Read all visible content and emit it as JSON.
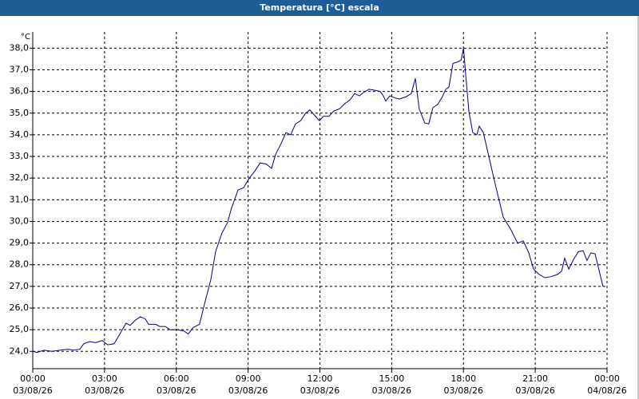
{
  "header": {
    "title": "Temperatura [°C] escala"
  },
  "chart_data": {
    "type": "line",
    "y_unit": "°C",
    "x": [
      0,
      0.17,
      0.47,
      0.8,
      1.13,
      1.47,
      1.7,
      1.97,
      2.13,
      2.37,
      2.63,
      2.9,
      3.13,
      3.4,
      3.64,
      3.9,
      4.07,
      4.3,
      4.5,
      4.7,
      4.84,
      5.14,
      5.3,
      5.54,
      5.74,
      6.04,
      6.3,
      6.5,
      6.7,
      6.97,
      7.18,
      7.44,
      7.64,
      7.9,
      8.14,
      8.3,
      8.58,
      8.81,
      9.05,
      9.3,
      9.5,
      9.75,
      9.98,
      10.15,
      10.38,
      10.58,
      10.78,
      10.98,
      11.2,
      11.4,
      11.58,
      11.78,
      11.98,
      12.15,
      12.38,
      12.58,
      12.82,
      13.05,
      13.25,
      13.45,
      13.65,
      13.82,
      14.05,
      14.32,
      14.52,
      14.65,
      14.75,
      14.92,
      15.15,
      15.32,
      15.59,
      15.82,
      15.99,
      16.15,
      16.38,
      16.55,
      16.72,
      16.92,
      17.09,
      17.26,
      17.39,
      17.56,
      17.73,
      17.9,
      18.0,
      18.1,
      18.23,
      18.39,
      18.56,
      18.66,
      18.83,
      19.06,
      19.33,
      19.66,
      19.99,
      20.26,
      20.5,
      20.73,
      20.93,
      21.16,
      21.4,
      21.66,
      21.93,
      22.1,
      22.23,
      22.4,
      22.6,
      22.8,
      23.0,
      23.16,
      23.33,
      23.5,
      23.83
    ],
    "series": [
      {
        "color": "#00008b",
        "values": [
          24.0,
          23.95,
          24.05,
          24.0,
          24.05,
          24.1,
          24.05,
          24.1,
          24.35,
          24.45,
          24.4,
          24.5,
          24.3,
          24.35,
          24.8,
          25.3,
          25.2,
          25.45,
          25.6,
          25.5,
          25.25,
          25.25,
          25.15,
          25.15,
          25.0,
          25.0,
          24.95,
          24.8,
          25.1,
          25.25,
          26.2,
          27.3,
          28.6,
          29.45,
          29.95,
          30.6,
          31.45,
          31.55,
          32.0,
          32.35,
          32.7,
          32.65,
          32.45,
          33.1,
          33.6,
          34.1,
          34.0,
          34.5,
          34.65,
          35.0,
          35.15,
          34.9,
          34.65,
          34.85,
          34.85,
          35.1,
          35.2,
          35.45,
          35.6,
          35.9,
          35.8,
          35.95,
          36.1,
          36.05,
          36.0,
          35.8,
          35.55,
          35.8,
          35.7,
          35.65,
          35.75,
          35.9,
          36.6,
          35.2,
          34.55,
          34.5,
          35.25,
          35.4,
          35.7,
          36.1,
          36.2,
          37.3,
          37.35,
          37.45,
          38.0,
          36.7,
          35.05,
          34.1,
          34.0,
          34.4,
          34.1,
          33.0,
          31.7,
          30.2,
          29.6,
          29.0,
          29.1,
          28.55,
          27.8,
          27.55,
          27.4,
          27.45,
          27.55,
          27.7,
          28.3,
          27.8,
          28.25,
          28.6,
          28.65,
          28.2,
          28.55,
          28.5,
          27.0
        ]
      }
    ],
    "xlim": [
      0,
      24
    ],
    "xticks": [
      {
        "value": 0,
        "label": "00:00"
      },
      {
        "value": 3,
        "label": "03:00"
      },
      {
        "value": 6,
        "label": "06:00"
      },
      {
        "value": 9,
        "label": "09:00"
      },
      {
        "value": 12,
        "label": "12:00"
      },
      {
        "value": 15,
        "label": "15:00"
      },
      {
        "value": 18,
        "label": "18:00"
      },
      {
        "value": 21,
        "label": "21:00"
      },
      {
        "value": 24,
        "label": "00:00"
      }
    ],
    "xtick_dates": [
      "03/08/26",
      "03/08/26",
      "03/08/26",
      "03/08/26",
      "03/08/26",
      "03/08/26",
      "03/08/26",
      "03/08/26",
      "04/08/26"
    ],
    "ylim": [
      23.2,
      38.75
    ],
    "yticks": [
      {
        "value": 24,
        "label": "24,0"
      },
      {
        "value": 25,
        "label": "25,0"
      },
      {
        "value": 26,
        "label": "26,0"
      },
      {
        "value": 27,
        "label": "27,0"
      },
      {
        "value": 28,
        "label": "28,0"
      },
      {
        "value": 29,
        "label": "29,0"
      },
      {
        "value": 30,
        "label": "30,0"
      },
      {
        "value": 31,
        "label": "31,0"
      },
      {
        "value": 32,
        "label": "32,0"
      },
      {
        "value": 33,
        "label": "33,0"
      },
      {
        "value": 34,
        "label": "34,0"
      },
      {
        "value": 35,
        "label": "35,0"
      },
      {
        "value": 36,
        "label": "36,0"
      },
      {
        "value": 37,
        "label": "37,0"
      },
      {
        "value": 38,
        "label": "38,0"
      }
    ],
    "grid": true
  }
}
